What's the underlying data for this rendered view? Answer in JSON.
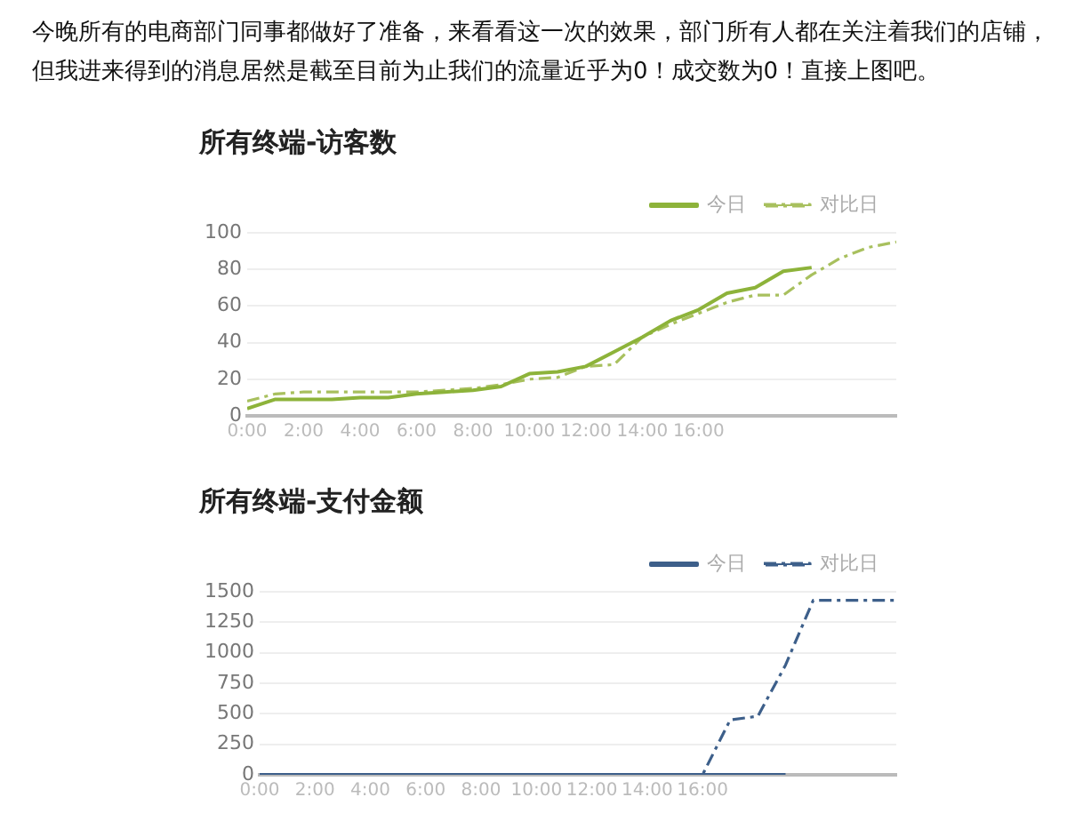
{
  "chart_data": [
    {
      "type": "line",
      "title": "所有终端-访客数",
      "annotations": [
        "今晚所有的电商部门同事都做好了准备，来看看这一次的效果，部门所有人都在关注着我们的店铺，但我进来得到的消息居然是截至目前为止我们的流量近乎为0！成交数为0！直接上图吧。"
      ],
      "x": [
        0,
        1,
        2,
        3,
        4,
        5,
        6,
        7,
        8,
        9,
        10,
        11,
        12,
        13,
        14,
        15,
        16,
        17,
        18,
        19,
        20,
        21,
        22,
        23
      ],
      "series": [
        {
          "name": "今日",
          "color": "#8db33a",
          "line_style": "solid",
          "values": [
            4,
            9,
            9,
            9,
            10,
            10,
            12,
            13,
            14,
            16,
            23,
            24,
            27,
            35,
            43,
            52,
            58,
            67,
            70,
            79,
            81,
            null,
            null,
            null
          ]
        },
        {
          "name": "对比日",
          "color": "#a8c05e",
          "line_style": "dashed",
          "values": [
            8,
            12,
            13,
            13,
            13,
            13,
            13,
            14,
            15,
            17,
            20,
            21,
            27,
            28,
            43,
            50,
            56,
            62,
            66,
            66,
            77,
            86,
            92,
            95
          ]
        }
      ],
      "xlim": [
        0,
        23
      ],
      "xticks": [
        {
          "value": 0,
          "label": "0:00"
        },
        {
          "value": 2,
          "label": "2:00"
        },
        {
          "value": 4,
          "label": "4:00"
        },
        {
          "value": 6,
          "label": "6:00"
        },
        {
          "value": 8,
          "label": "8:00"
        },
        {
          "value": 10,
          "label": "10:00"
        },
        {
          "value": 12,
          "label": "12:00"
        },
        {
          "value": 14,
          "label": "14:00"
        },
        {
          "value": 16,
          "label": "16:00"
        }
      ],
      "ylim": [
        0,
        100
      ],
      "yticks": [
        0,
        20,
        40,
        60,
        80,
        100
      ],
      "grid": "y",
      "legend": "top right",
      "marker": "none"
    },
    {
      "type": "line",
      "title": "所有终端-支付金额",
      "x": [
        0,
        1,
        2,
        3,
        4,
        5,
        6,
        7,
        8,
        9,
        10,
        11,
        12,
        13,
        14,
        15,
        16,
        17,
        18,
        19,
        20,
        21,
        22,
        23
      ],
      "series": [
        {
          "name": "今日",
          "color": "#3d5f8a",
          "line_style": "solid",
          "values": [
            0,
            0,
            0,
            0,
            0,
            0,
            0,
            0,
            0,
            0,
            0,
            0,
            0,
            0,
            0,
            0,
            0,
            0,
            0,
            0,
            null,
            null,
            null,
            null
          ]
        },
        {
          "name": "对比日",
          "color": "#3d5f8a",
          "line_style": "dashed",
          "values": [
            0,
            0,
            0,
            0,
            0,
            0,
            0,
            0,
            0,
            0,
            0,
            0,
            0,
            0,
            0,
            0,
            0,
            450,
            480,
            900,
            1430,
            1430,
            1430,
            1430
          ]
        }
      ],
      "xlim": [
        0,
        23
      ],
      "xticks": [
        {
          "value": 0,
          "label": "0:00"
        },
        {
          "value": 2,
          "label": "2:00"
        },
        {
          "value": 4,
          "label": "4:00"
        },
        {
          "value": 6,
          "label": "6:00"
        },
        {
          "value": 8,
          "label": "8:00"
        },
        {
          "value": 10,
          "label": "10:00"
        },
        {
          "value": 12,
          "label": "12:00"
        },
        {
          "value": 14,
          "label": "14:00"
        },
        {
          "value": 16,
          "label": "16:00"
        }
      ],
      "ylim": [
        0,
        1500
      ],
      "yticks": [
        0,
        250,
        500,
        750,
        1000,
        1250,
        1500
      ],
      "grid": "y",
      "legend": "top right",
      "marker": "none"
    }
  ]
}
